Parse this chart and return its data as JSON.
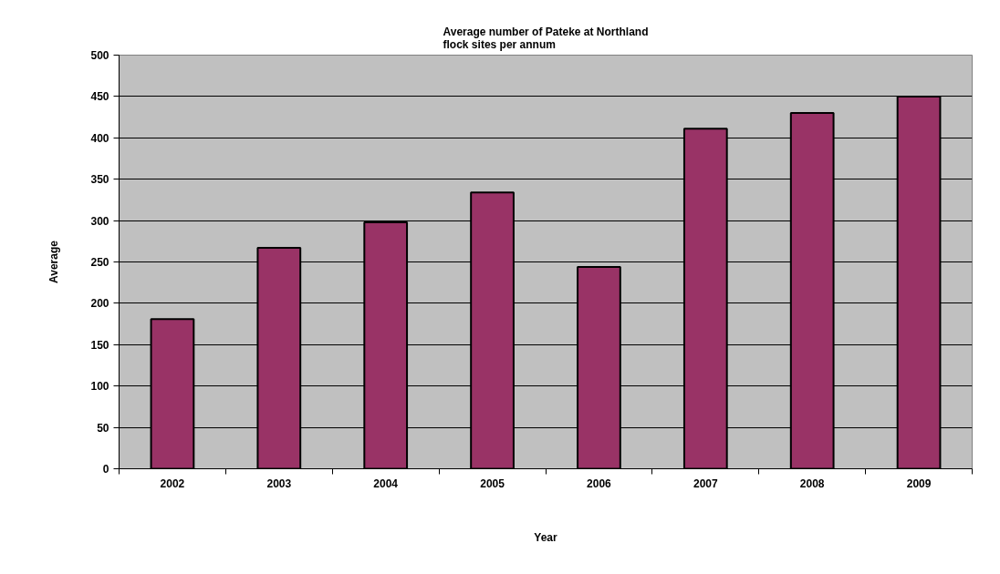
{
  "chart_data": {
    "type": "bar",
    "title": "Average number of Pateke at Northland\nflock sites per annum",
    "xlabel": "Year",
    "ylabel": "Average",
    "categories": [
      "2002",
      "2003",
      "2004",
      "2005",
      "2006",
      "2007",
      "2008",
      "2009"
    ],
    "values": [
      181,
      267,
      298,
      334,
      244,
      411,
      430,
      450
    ],
    "color": "#993366",
    "ylim": [
      0,
      500
    ],
    "yticks": [
      0,
      50,
      100,
      150,
      200,
      250,
      300,
      350,
      400,
      450,
      500
    ],
    "grid": "y"
  }
}
